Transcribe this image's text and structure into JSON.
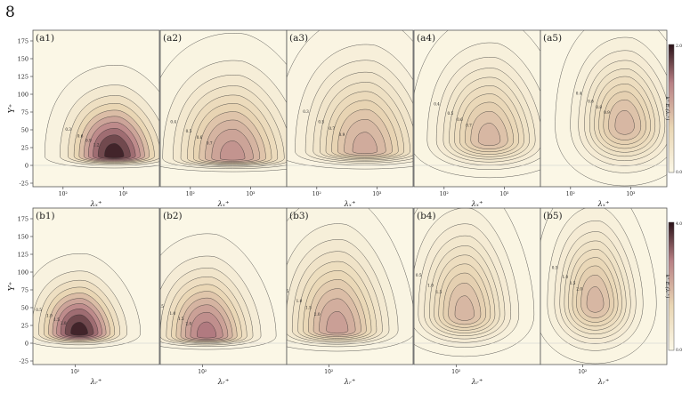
{
  "page_number": "8",
  "colors": {
    "cmap_low": "#fbf7e6",
    "cmap_mid": "#e9d6b4",
    "cmap_high_mid": "#b77f84",
    "cmap_high": "#2a1218",
    "contour": "#2b2b2b",
    "zero_line": "#c9c9c9"
  },
  "chart_data": [
    {
      "type": "heatmap",
      "row": "a",
      "ylabel": "Y⁺",
      "yticks": [
        -25,
        0,
        25,
        50,
        75,
        100,
        125,
        150,
        175
      ],
      "ylim": [
        -30,
        190
      ],
      "colorbar": {
        "label": "k⁺ Eᵤ(λₓ⁺)",
        "min_label": "0.0",
        "max_label": "2.0",
        "min": 0.0,
        "max": 2.0
      },
      "panels": [
        {
          "label": "(a1)",
          "xlabel": "λₓ⁺",
          "xlim": [
            1.5,
            3.6
          ],
          "xticks": [
            {
              "v": 2,
              "label": "10²"
            },
            {
              "v": 3,
              "label": "10³"
            }
          ],
          "peak": {
            "log_lambda": 2.85,
            "y": 13,
            "value": 2.0
          },
          "spread": {
            "log_lambda": 0.35,
            "y_above": 40,
            "y_below": 8
          },
          "contour_labels": [
            "0.3",
            "0.6",
            "0.9",
            "1.2"
          ]
        },
        {
          "label": "(a2)",
          "xlabel": "λₓ⁺",
          "xlim": [
            1.5,
            3.6
          ],
          "xticks": [
            {
              "v": 2,
              "label": "10²"
            },
            {
              "v": 3,
              "label": "10³"
            }
          ],
          "peak": {
            "log_lambda": 2.7,
            "y": 10,
            "value": 1.3
          },
          "spread": {
            "log_lambda": 0.45,
            "y_above": 55,
            "y_below": 9
          },
          "contour_labels": [
            "0.4",
            "0.5",
            "0.6",
            "0.7"
          ]
        },
        {
          "label": "(a3)",
          "xlabel": "λₓ⁺",
          "xlim": [
            1.5,
            3.6
          ],
          "xticks": [
            {
              "v": 2,
              "label": "10²"
            },
            {
              "v": 3,
              "label": "10³"
            }
          ],
          "peak": {
            "log_lambda": 2.8,
            "y": 20,
            "value": 1.1
          },
          "spread": {
            "log_lambda": 0.45,
            "y_above": 60,
            "y_below": 12
          },
          "contour_labels": [
            "0.3",
            "0.5",
            "0.7",
            "0.9"
          ]
        },
        {
          "label": "(a4)",
          "xlabel": "λₓ⁺",
          "xlim": [
            1.5,
            3.6
          ],
          "xticks": [
            {
              "v": 2,
              "label": "10²"
            },
            {
              "v": 3,
              "label": "10³"
            }
          ],
          "peak": {
            "log_lambda": 2.75,
            "y": 35,
            "value": 1.0
          },
          "spread": {
            "log_lambda": 0.4,
            "y_above": 55,
            "y_below": 25
          },
          "contour_labels": [
            "0.4",
            "0.5",
            "0.6",
            "0.7"
          ]
        },
        {
          "label": "(a5)",
          "xlabel": "λₓ⁺",
          "xlim": [
            1.5,
            3.6
          ],
          "xticks": [
            {
              "v": 2,
              "label": "10²"
            },
            {
              "v": 3,
              "label": "10³"
            }
          ],
          "peak": {
            "log_lambda": 2.9,
            "y": 55,
            "value": 1.0
          },
          "spread": {
            "log_lambda": 0.35,
            "y_above": 50,
            "y_below": 40
          },
          "contour_labels": [
            "0.4",
            "0.6",
            "0.8",
            "0.9"
          ]
        }
      ]
    },
    {
      "type": "heatmap",
      "row": "b",
      "ylabel": "Y⁺",
      "yticks": [
        -25,
        0,
        25,
        50,
        75,
        100,
        125,
        150,
        175
      ],
      "ylim": [
        -30,
        190
      ],
      "colorbar": {
        "label": "k⁺ Eᵤ(λᵣ⁺)",
        "min_label": "0.0",
        "max_label": "4.0",
        "min": 0.0,
        "max": 4.0
      },
      "panels": [
        {
          "label": "(b1)",
          "xlabel": "λᵣ⁺",
          "xlim": [
            1.5,
            3.0
          ],
          "xticks": [
            {
              "v": 2,
              "label": "10²"
            }
          ],
          "peak": {
            "log_lambda": 2.05,
            "y": 14,
            "value": 4.0
          },
          "spread": {
            "log_lambda": 0.22,
            "y_above": 35,
            "y_below": 10
          },
          "contour_labels": [
            "0.5",
            "1.0",
            "1.5",
            "2.0"
          ]
        },
        {
          "label": "(b2)",
          "xlabel": "λᵣ⁺",
          "xlim": [
            1.5,
            3.0
          ],
          "xticks": [
            {
              "v": 2,
              "label": "10²"
            }
          ],
          "peak": {
            "log_lambda": 2.05,
            "y": 10,
            "value": 3.0
          },
          "spread": {
            "log_lambda": 0.25,
            "y_above": 45,
            "y_below": 9
          },
          "contour_labels": [
            "0.5",
            "1.0",
            "1.5",
            "2.0"
          ]
        },
        {
          "label": "(b3)",
          "xlabel": "λᵣ⁺",
          "xlim": [
            1.5,
            3.0
          ],
          "xticks": [
            {
              "v": 2,
              "label": "10²"
            }
          ],
          "peak": {
            "log_lambda": 2.1,
            "y": 18,
            "value": 2.4
          },
          "spread": {
            "log_lambda": 0.28,
            "y_above": 60,
            "y_below": 14
          },
          "contour_labels": [
            "0.5",
            "1.0",
            "1.5",
            "2.0"
          ]
        },
        {
          "label": "(b4)",
          "xlabel": "λᵣ⁺",
          "xlim": [
            1.5,
            3.0
          ],
          "xticks": [
            {
              "v": 2,
              "label": "10²"
            }
          ],
          "peak": {
            "log_lambda": 2.1,
            "y": 40,
            "value": 2.0
          },
          "spread": {
            "log_lambda": 0.25,
            "y_above": 60,
            "y_below": 28
          },
          "contour_labels": [
            "0.5",
            "1.0",
            "1.5"
          ]
        },
        {
          "label": "(b5)",
          "xlabel": "λᵣ⁺",
          "xlim": [
            1.5,
            3.0
          ],
          "xticks": [
            {
              "v": 2,
              "label": "10²"
            }
          ],
          "peak": {
            "log_lambda": 2.15,
            "y": 55,
            "value": 2.0
          },
          "spread": {
            "log_lambda": 0.22,
            "y_above": 55,
            "y_below": 40
          },
          "contour_labels": [
            "0.5",
            "1.0",
            "1.5",
            "2.0"
          ]
        }
      ]
    }
  ]
}
